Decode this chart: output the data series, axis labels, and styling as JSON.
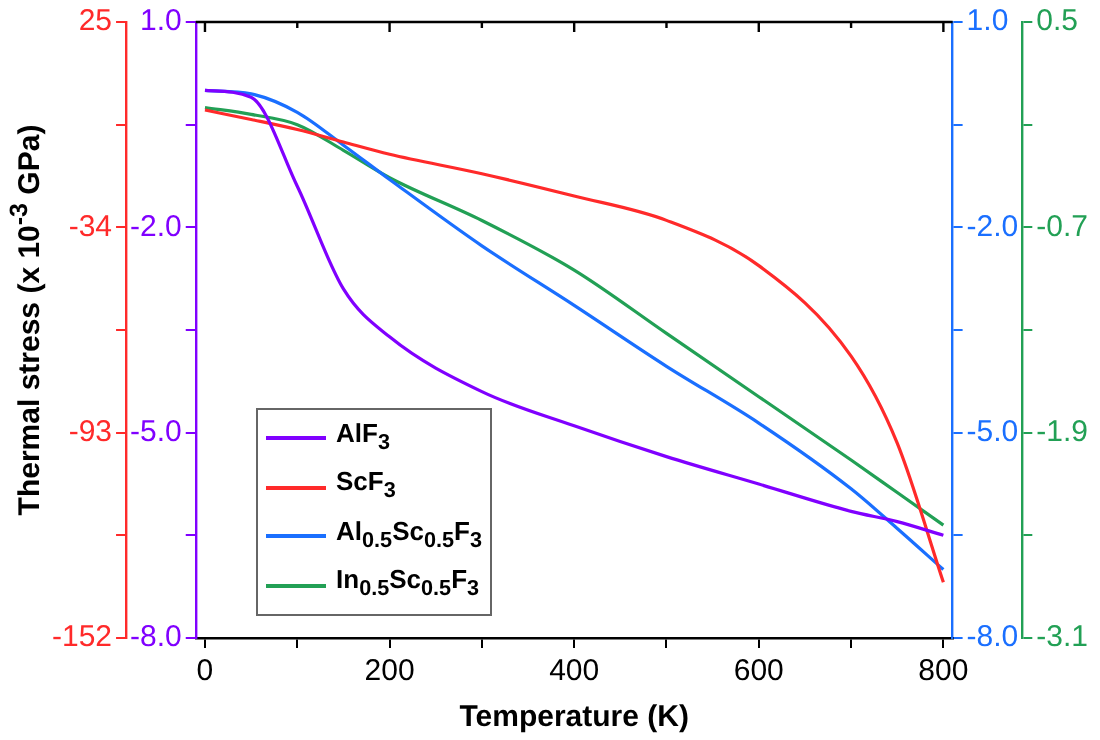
{
  "chart_data": {
    "type": "line",
    "xlabel": "Temperature (K)",
    "ylabel": "Thermal stress (x 10$^{-3}$ GPa)",
    "x": [
      0,
      50,
      100,
      150,
      200,
      300,
      400,
      500,
      600,
      700,
      750,
      800
    ],
    "xlim": [
      -10,
      810
    ],
    "xticks": [
      0,
      {
        "value": 100,
        "label": null
      },
      200,
      {
        "value": 300,
        "label": null
      },
      400,
      {
        "value": 500,
        "label": null
      },
      600,
      {
        "value": 700,
        "label": null
      },
      800
    ],
    "ylim": [
      -152,
      25
    ],
    "yticks": [
      25,
      {
        "value": -4.5,
        "label": null
      },
      -34,
      {
        "value": -63.5,
        "label": null
      },
      -93,
      {
        "value": -122.5,
        "label": null
      },
      -152
    ],
    "y2lim": [
      -8.0,
      1.0
    ],
    "y2ticks": [
      {
        "value": 1,
        "label": "1.0"
      },
      {
        "value": -0.5,
        "label": null
      },
      {
        "value": -2,
        "label": "-2.0"
      },
      {
        "value": -3.5,
        "label": null
      },
      {
        "value": -5,
        "label": "-5.0"
      },
      {
        "value": -6.5,
        "label": null
      },
      {
        "value": -8,
        "label": "-8.0"
      }
    ],
    "y3lim": [
      -3.1,
      0.5
    ],
    "y3ticks": [
      0.5,
      {
        "value": -0.1,
        "label": null
      },
      -0.7,
      {
        "value": -1.3,
        "label": null
      },
      -1.9,
      {
        "value": -2.5,
        "label": null
      },
      -3.1
    ],
    "legend": "bottom left",
    "grid": false,
    "marker": "none",
    "line_style": "solid",
    "series": [
      {
        "name": "AlF$_{3}$",
        "color": "#8000ff",
        "axis": "y2",
        "values": [
          0.0,
          -0.1,
          -1.4,
          -2.9,
          -3.6,
          -4.4,
          -4.9,
          -5.35,
          -5.75,
          -6.15,
          -6.3,
          -6.5
        ]
      },
      {
        "name": "ScF$_{3}$",
        "color": "#ff2a2a",
        "values": [
          -0.3,
          -3,
          -5.9,
          -9.5,
          -13,
          -18.6,
          -25,
          -32,
          -45,
          -71,
          -96,
          -136
        ]
      },
      {
        "name": "Al$_{0.5}$Sc$_{0.5}$F$_{3}$",
        "color": "#1a6fff",
        "axis": "y2",
        "values": [
          0.0,
          -0.05,
          -0.32,
          -0.8,
          -1.3,
          -2.27,
          -3.14,
          -4.03,
          -4.86,
          -5.82,
          -6.4,
          -7.0
        ]
      },
      {
        "name": "In$_{0.5}$Sc$_{0.5}$F$_{3}$",
        "color": "#22a055",
        "axis": "y3",
        "values": [
          0.0,
          -0.04,
          -0.1,
          -0.25,
          -0.41,
          -0.66,
          -0.95,
          -1.32,
          -1.69,
          -2.06,
          -2.25,
          -2.44
        ]
      }
    ]
  }
}
